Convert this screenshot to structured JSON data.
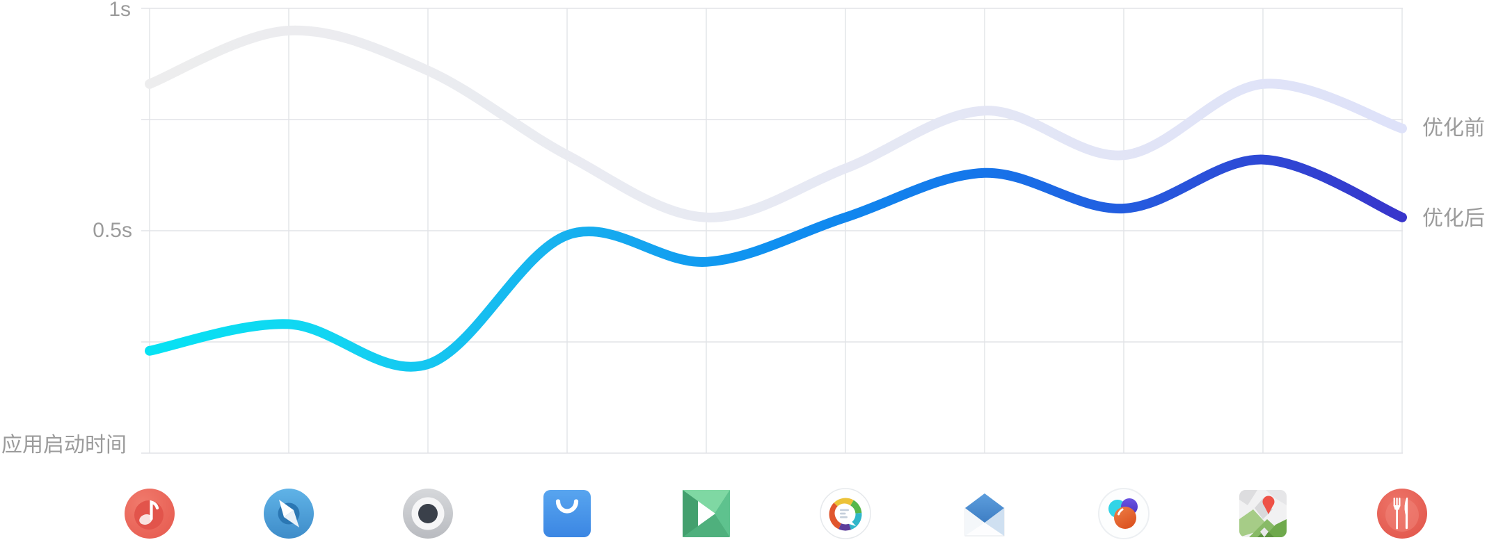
{
  "chart_data": {
    "type": "line",
    "title": "",
    "ylabel": "应用启动时间",
    "unit": "s",
    "ylim": [
      0,
      1
    ],
    "grid": true,
    "smooth": true,
    "legend_position": "right-of-line-ends",
    "y_ticks": [
      {
        "value": 1.0,
        "label": "1s"
      },
      {
        "value": 0.5,
        "label": "0.5s"
      }
    ],
    "x_categories": [
      "music",
      "browser",
      "recorder",
      "app-store",
      "video-player",
      "messages",
      "mail",
      "photos",
      "maps",
      "food"
    ],
    "series": [
      {
        "name": "优化前",
        "values": [
          0.83,
          0.95,
          0.86,
          0.67,
          0.53,
          0.64,
          0.77,
          0.67,
          0.83,
          0.73
        ],
        "gradient": [
          "#ededee",
          "#e7e9f2",
          "#dee2f9"
        ]
      },
      {
        "name": "优化后",
        "values": [
          0.23,
          0.29,
          0.2,
          0.49,
          0.43,
          0.53,
          0.63,
          0.55,
          0.66,
          0.53
        ],
        "gradient": [
          "#06e2f3",
          "#0f8ff0",
          "#3835cb"
        ]
      }
    ]
  },
  "icons": [
    {
      "name": "music",
      "main_color": "#e9574c"
    },
    {
      "name": "browser",
      "main_color": "#4a9fd6"
    },
    {
      "name": "recorder",
      "main_color": "#c9cbd0"
    },
    {
      "name": "app-store",
      "main_color": "#418fe8"
    },
    {
      "name": "video-player",
      "main_color": "#56bb85"
    },
    {
      "name": "messages",
      "main_color": "#e0562e"
    },
    {
      "name": "mail",
      "main_color": "#4c8fd0"
    },
    {
      "name": "photos",
      "main_color": "#dd5526"
    },
    {
      "name": "maps",
      "main_color": "#6fa94c"
    },
    {
      "name": "food",
      "main_color": "#e8655c"
    }
  ],
  "colors": {
    "grid": "#e2e3e7",
    "label_text": "#9b9b9b",
    "background": "#ffffff"
  }
}
